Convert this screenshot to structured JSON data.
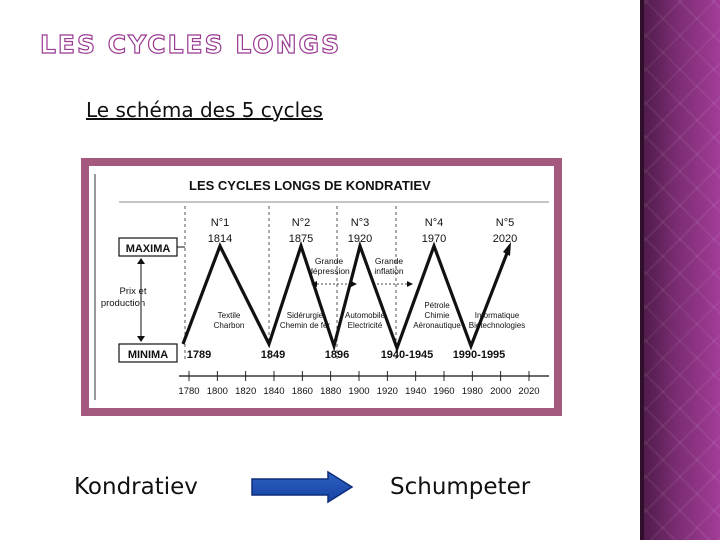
{
  "slide": {
    "title": "LES CYCLES LONGS",
    "subtitle": "Le schéma des 5 cycles",
    "left_label": "Kondratiev",
    "right_label": "Schumpeter",
    "accent_color": "#9a3a92"
  },
  "figure": {
    "title": "LES CYCLES LONGS DE KONDRATIEV",
    "maxima_label": "MAXIMA",
    "minima_label": "MINIMA",
    "axis_label_line1": "Prix et",
    "axis_label_line2": "production",
    "cycles": [
      {
        "number": "N°1",
        "year": "1814"
      },
      {
        "number": "N°2",
        "year": "1875"
      },
      {
        "number": "N°3",
        "year": "1920"
      },
      {
        "number": "N°4",
        "year": "1970"
      },
      {
        "number": "N°5",
        "year": "2020"
      }
    ],
    "minima_years": [
      "1789",
      "1849",
      "1896",
      "1940-1945",
      "1990-1995"
    ],
    "period_labels": [
      {
        "line1": "Grande",
        "line2": "dépression"
      },
      {
        "line1": "Grande",
        "line2": "inflation"
      }
    ],
    "innovations": [
      {
        "line1": "Textile",
        "line2": "Charbon"
      },
      {
        "line1": "Sidérurgie",
        "line2": "Chemin de fer"
      },
      {
        "line1": "Automobile",
        "line2": "Electricité"
      },
      {
        "line1": "Pétrole",
        "line2": "Chimie",
        "line3": "Aéronautique"
      },
      {
        "line1": "Informatique",
        "line2": "Biotechnologies"
      }
    ],
    "timeline_years": [
      "1780",
      "1800",
      "1820",
      "1840",
      "1860",
      "1880",
      "1900",
      "1920",
      "1940",
      "1960",
      "1980",
      "2000",
      "2020"
    ]
  }
}
